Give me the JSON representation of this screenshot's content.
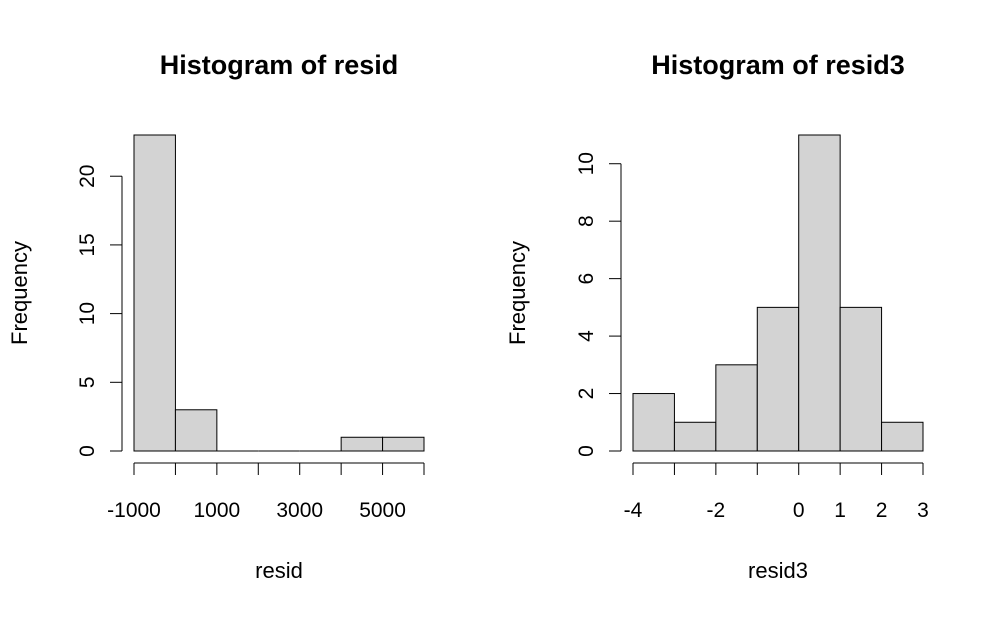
{
  "chart_data": [
    {
      "type": "bar",
      "title": "Histogram of resid",
      "xlabel": "resid",
      "ylabel": "Frequency",
      "bins": [
        {
          "from": -1000,
          "to": 0,
          "count": 23
        },
        {
          "from": 0,
          "to": 1000,
          "count": 3
        },
        {
          "from": 1000,
          "to": 2000,
          "count": 0
        },
        {
          "from": 2000,
          "to": 3000,
          "count": 0
        },
        {
          "from": 3000,
          "to": 4000,
          "count": 0
        },
        {
          "from": 4000,
          "to": 5000,
          "count": 1
        },
        {
          "from": 5000,
          "to": 6000,
          "count": 1
        }
      ],
      "xlim": [
        -1000,
        6000
      ],
      "ylim": [
        0,
        23
      ],
      "x_ticks": [
        -1000,
        0,
        1000,
        2000,
        3000,
        4000,
        5000,
        6000
      ],
      "x_tick_labels": [
        "-1000",
        "",
        "1000",
        "",
        "3000",
        "",
        "5000",
        ""
      ],
      "y_ticks": [
        0,
        5,
        10,
        15,
        20
      ],
      "y_tick_labels": [
        "0",
        "5",
        "10",
        "15",
        "20"
      ],
      "bar_color": "#d3d3d3"
    },
    {
      "type": "bar",
      "title": "Histogram of resid3",
      "xlabel": "resid3",
      "ylabel": "Frequency",
      "bins": [
        {
          "from": -4,
          "to": -3,
          "count": 2
        },
        {
          "from": -3,
          "to": -2,
          "count": 1
        },
        {
          "from": -2,
          "to": -1,
          "count": 3
        },
        {
          "from": -1,
          "to": 0,
          "count": 5
        },
        {
          "from": 0,
          "to": 1,
          "count": 11
        },
        {
          "from": 1,
          "to": 2,
          "count": 5
        },
        {
          "from": 2,
          "to": 3,
          "count": 1
        }
      ],
      "xlim": [
        -4,
        3
      ],
      "ylim": [
        0,
        11
      ],
      "x_ticks": [
        -4,
        -3,
        -2,
        -1,
        0,
        1,
        2,
        3
      ],
      "x_tick_labels": [
        "-4",
        "",
        "-2",
        "",
        "0",
        "1",
        "2",
        "3"
      ],
      "y_ticks": [
        0,
        2,
        4,
        6,
        8,
        10
      ],
      "y_tick_labels": [
        "0",
        "2",
        "4",
        "6",
        "8",
        "10"
      ],
      "bar_color": "#d3d3d3"
    }
  ]
}
